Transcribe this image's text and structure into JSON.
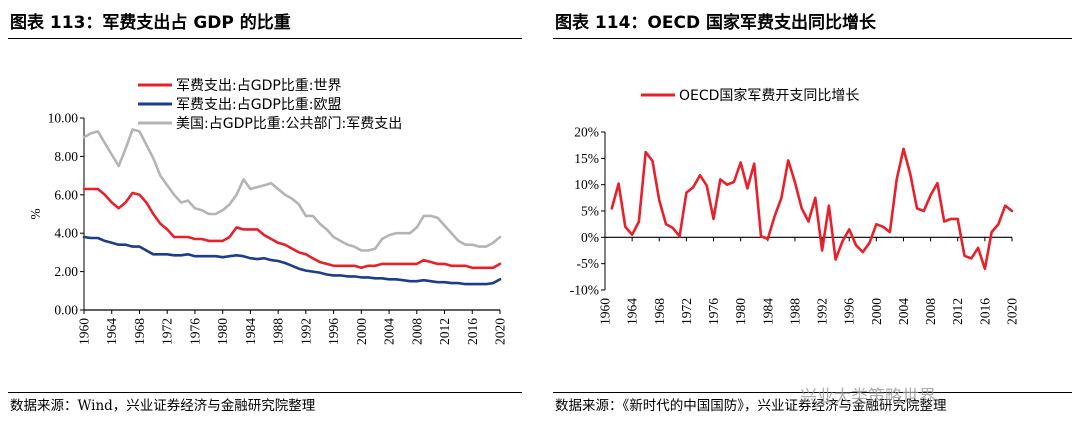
{
  "figures": {
    "left_title": "图表 113：军费支出占 GDP 的比重",
    "right_title": "图表 114：OECD 国家军费支出同比增长",
    "left_source": "数据来源：Wind，兴业证券经济与金融研究院整理",
    "right_source": "数据来源：《新时代的中国国防》，兴业证券经济与金融研究院整理",
    "watermark": "兴业大类策略世界"
  },
  "chart_data": [
    {
      "type": "line",
      "title": "军费支出占 GDP 的比重",
      "ylabel": "%",
      "xlabel": "",
      "ylim": [
        0,
        10
      ],
      "yticks": [
        "0.00",
        "2.00",
        "4.00",
        "6.00",
        "8.00",
        "10.00"
      ],
      "ytick_values": [
        0,
        2,
        4,
        6,
        8,
        10
      ],
      "xlim": [
        1960,
        2020
      ],
      "xticks": [
        "1960",
        "1964",
        "1968",
        "1972",
        "1976",
        "1980",
        "1984",
        "1988",
        "1992",
        "1996",
        "2000",
        "2004",
        "2008",
        "2012",
        "2016",
        "2020"
      ],
      "x": [
        1960,
        1961,
        1962,
        1963,
        1964,
        1965,
        1966,
        1967,
        1968,
        1969,
        1970,
        1971,
        1972,
        1973,
        1974,
        1975,
        1976,
        1977,
        1978,
        1979,
        1980,
        1981,
        1982,
        1983,
        1984,
        1985,
        1986,
        1987,
        1988,
        1989,
        1990,
        1991,
        1992,
        1993,
        1994,
        1995,
        1996,
        1997,
        1998,
        1999,
        2000,
        2001,
        2002,
        2003,
        2004,
        2005,
        2006,
        2007,
        2008,
        2009,
        2010,
        2011,
        2012,
        2013,
        2014,
        2015,
        2016,
        2017,
        2018,
        2019,
        2020
      ],
      "legend": "top-left",
      "series": [
        {
          "name": "军费支出:占GDP比重:世界",
          "color": "#e8202a",
          "values": [
            6.3,
            6.3,
            6.3,
            6.0,
            5.6,
            5.3,
            5.6,
            6.1,
            6.0,
            5.6,
            5.0,
            4.5,
            4.2,
            3.8,
            3.8,
            3.8,
            3.7,
            3.7,
            3.6,
            3.6,
            3.6,
            3.8,
            4.3,
            4.2,
            4.2,
            4.2,
            3.9,
            3.7,
            3.5,
            3.4,
            3.2,
            3.0,
            2.9,
            2.7,
            2.5,
            2.4,
            2.3,
            2.3,
            2.3,
            2.3,
            2.2,
            2.3,
            2.3,
            2.4,
            2.4,
            2.4,
            2.4,
            2.4,
            2.4,
            2.6,
            2.5,
            2.4,
            2.4,
            2.3,
            2.3,
            2.3,
            2.2,
            2.2,
            2.2,
            2.2,
            2.4
          ]
        },
        {
          "name": "军费支出:占GDP比重:欧盟",
          "color": "#1c3c8c",
          "values": [
            3.8,
            3.75,
            3.75,
            3.6,
            3.5,
            3.4,
            3.4,
            3.3,
            3.3,
            3.1,
            2.9,
            2.9,
            2.9,
            2.85,
            2.85,
            2.9,
            2.8,
            2.8,
            2.8,
            2.8,
            2.75,
            2.8,
            2.85,
            2.8,
            2.7,
            2.65,
            2.7,
            2.6,
            2.55,
            2.45,
            2.3,
            2.15,
            2.05,
            2.0,
            1.95,
            1.85,
            1.8,
            1.8,
            1.75,
            1.75,
            1.7,
            1.7,
            1.65,
            1.65,
            1.6,
            1.6,
            1.55,
            1.5,
            1.5,
            1.55,
            1.5,
            1.45,
            1.45,
            1.4,
            1.4,
            1.35,
            1.35,
            1.35,
            1.35,
            1.4,
            1.6
          ]
        },
        {
          "name": "美国:占GDP比重:公共部门:军费支出",
          "color": "#b4b4b4",
          "values": [
            9.0,
            9.2,
            9.3,
            8.7,
            8.1,
            7.5,
            8.4,
            9.4,
            9.3,
            8.6,
            7.9,
            7.0,
            6.5,
            6.0,
            5.6,
            5.7,
            5.3,
            5.2,
            5.0,
            5.0,
            5.2,
            5.5,
            6.0,
            6.8,
            6.3,
            6.4,
            6.5,
            6.6,
            6.3,
            6.0,
            5.8,
            5.5,
            4.9,
            4.9,
            4.5,
            4.2,
            3.8,
            3.6,
            3.4,
            3.3,
            3.1,
            3.1,
            3.2,
            3.7,
            3.9,
            4.0,
            4.0,
            4.0,
            4.3,
            4.9,
            4.9,
            4.8,
            4.4,
            4.0,
            3.6,
            3.4,
            3.4,
            3.3,
            3.3,
            3.5,
            3.8
          ]
        }
      ]
    },
    {
      "type": "line",
      "title": "OECD国家军费支出同比增长",
      "ylabel": "",
      "xlabel": "",
      "ylim": [
        -10,
        20
      ],
      "yticks": [
        "-10%",
        "-5%",
        "0%",
        "5%",
        "10%",
        "15%",
        "20%"
      ],
      "ytick_values": [
        -10,
        -5,
        0,
        5,
        10,
        15,
        20
      ],
      "xlim": [
        1960,
        2020
      ],
      "xticks": [
        "1960",
        "1964",
        "1968",
        "1972",
        "1976",
        "1980",
        "1984",
        "1988",
        "1992",
        "1996",
        "2000",
        "2004",
        "2008",
        "2012",
        "2016",
        "2020"
      ],
      "x": [
        1961,
        1962,
        1963,
        1964,
        1965,
        1966,
        1967,
        1968,
        1969,
        1970,
        1971,
        1972,
        1973,
        1974,
        1975,
        1976,
        1977,
        1978,
        1979,
        1980,
        1981,
        1982,
        1983,
        1984,
        1985,
        1986,
        1987,
        1988,
        1989,
        1990,
        1991,
        1992,
        1993,
        1994,
        1995,
        1996,
        1997,
        1998,
        1999,
        2000,
        2001,
        2002,
        2003,
        2004,
        2005,
        2006,
        2007,
        2008,
        2009,
        2010,
        2011,
        2012,
        2013,
        2014,
        2015,
        2016,
        2017,
        2018,
        2019,
        2020
      ],
      "legend": "top",
      "series": [
        {
          "name": "OECD国家军费开支同比增长",
          "color": "#e8202a",
          "values": [
            5.5,
            10.2,
            2.0,
            0.5,
            3.0,
            16.2,
            14.5,
            7.0,
            2.5,
            1.8,
            0.2,
            8.5,
            9.5,
            11.8,
            9.8,
            3.5,
            11.0,
            10.0,
            10.5,
            14.2,
            9.3,
            14.0,
            0.2,
            -0.3,
            4.0,
            7.5,
            14.6,
            10.5,
            5.5,
            3.0,
            7.5,
            -2.5,
            6.0,
            -4.2,
            -0.8,
            1.5,
            -1.5,
            -2.8,
            -1.0,
            2.5,
            2.0,
            1.0,
            11.0,
            16.8,
            12.0,
            5.5,
            5.0,
            8.0,
            10.3,
            3.0,
            3.5,
            3.5,
            -3.5,
            -4.0,
            -2.0,
            -6.0,
            1.0,
            2.5,
            6.0,
            5.0
          ]
        }
      ]
    }
  ]
}
